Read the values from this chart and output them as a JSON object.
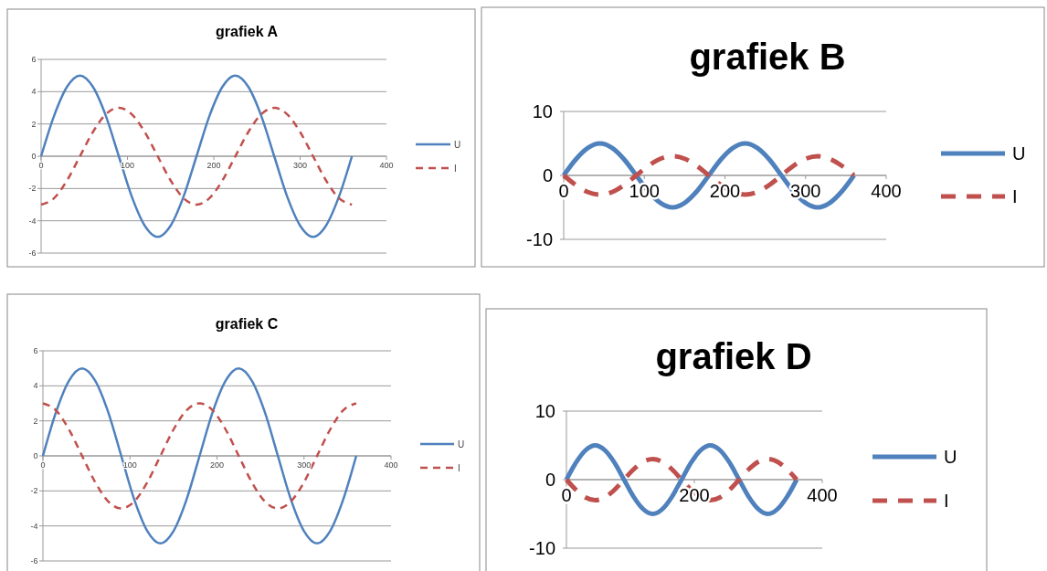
{
  "chart_data": [
    {
      "type": "line",
      "title": "grafiek A",
      "x": [
        0,
        15,
        30,
        45,
        60,
        75,
        90,
        105,
        120,
        135,
        150,
        165,
        180,
        195,
        210,
        225,
        240,
        255,
        270,
        285,
        300,
        315,
        330,
        345,
        360
      ],
      "xlim": [
        0,
        400
      ],
      "xticks": [
        0,
        100,
        200,
        300,
        400
      ],
      "ylim": [
        -6,
        6
      ],
      "yticks": [
        -6,
        -4,
        -2,
        0,
        2,
        4,
        6
      ],
      "grid": "y",
      "legend": "right",
      "series": [
        {
          "name": "U",
          "color": "#4f81bd",
          "line_style": "solid",
          "values": [
            0,
            2.5,
            4.3,
            5,
            4.3,
            2.5,
            0,
            -2.5,
            -4.3,
            -5,
            -4.3,
            -2.5,
            0,
            2.5,
            4.3,
            5,
            4.3,
            2.5,
            0,
            -2.5,
            -4.3,
            -5,
            -4.3,
            -2.5,
            0
          ]
        },
        {
          "name": "I",
          "color": "#c0504d",
          "line_style": "dashed",
          "values": [
            -3,
            -2.6,
            -1.5,
            0,
            1.5,
            2.6,
            3,
            2.6,
            1.5,
            0,
            -1.5,
            -2.6,
            -3,
            -2.6,
            -1.5,
            0,
            1.5,
            2.6,
            3,
            2.6,
            1.5,
            0,
            -1.5,
            -2.6,
            -3
          ]
        }
      ]
    },
    {
      "type": "line",
      "title": "grafiek B",
      "x": [
        0,
        15,
        30,
        45,
        60,
        75,
        90,
        105,
        120,
        135,
        150,
        165,
        180,
        195,
        210,
        225,
        240,
        255,
        270,
        285,
        300,
        315,
        330,
        345,
        360
      ],
      "xlim": [
        0,
        400
      ],
      "xticks": [
        0,
        100,
        200,
        300,
        400
      ],
      "ylim": [
        -10,
        10
      ],
      "yticks": [
        -10,
        0,
        10
      ],
      "grid": "y",
      "legend": "right",
      "series": [
        {
          "name": "U",
          "color": "#4f81bd",
          "line_style": "solid",
          "values": [
            0,
            2.5,
            4.3,
            5,
            4.3,
            2.5,
            0,
            -2.5,
            -4.3,
            -5,
            -4.3,
            -2.5,
            0,
            2.5,
            4.3,
            5,
            4.3,
            2.5,
            0,
            -2.5,
            -4.3,
            -5,
            -4.3,
            -2.5,
            0
          ]
        },
        {
          "name": "I",
          "color": "#c0504d",
          "line_style": "dashed",
          "values": [
            0,
            -1.5,
            -2.6,
            -3,
            -2.6,
            -1.5,
            0,
            1.5,
            2.6,
            3,
            2.6,
            1.5,
            0,
            -1.5,
            -2.6,
            -3,
            -2.6,
            -1.5,
            0,
            1.5,
            2.6,
            3,
            2.6,
            1.5,
            0
          ]
        }
      ]
    },
    {
      "type": "line",
      "title": "grafiek C",
      "x": [
        0,
        15,
        30,
        45,
        60,
        75,
        90,
        105,
        120,
        135,
        150,
        165,
        180,
        195,
        210,
        225,
        240,
        255,
        270,
        285,
        300,
        315,
        330,
        345,
        360
      ],
      "xlim": [
        0,
        400
      ],
      "xticks": [
        0,
        100,
        200,
        300,
        400
      ],
      "ylim": [
        -6,
        6
      ],
      "yticks": [
        -6,
        -4,
        -2,
        0,
        2,
        4,
        6
      ],
      "grid": "y",
      "legend": "right",
      "series": [
        {
          "name": "U",
          "color": "#4f81bd",
          "line_style": "solid",
          "values": [
            0,
            2.5,
            4.3,
            5,
            4.3,
            2.5,
            0,
            -2.5,
            -4.3,
            -5,
            -4.3,
            -2.5,
            0,
            2.5,
            4.3,
            5,
            4.3,
            2.5,
            0,
            -2.5,
            -4.3,
            -5,
            -4.3,
            -2.5,
            0
          ]
        },
        {
          "name": "I",
          "color": "#c0504d",
          "line_style": "dashed",
          "values": [
            3,
            2.6,
            1.5,
            0,
            -1.5,
            -2.6,
            -3,
            -2.6,
            -1.5,
            0,
            1.5,
            2.6,
            3,
            2.6,
            1.5,
            0,
            -1.5,
            -2.6,
            -3,
            -2.6,
            -1.5,
            0,
            1.5,
            2.6,
            3
          ]
        }
      ]
    },
    {
      "type": "line",
      "title": "grafiek D",
      "x": [
        0,
        15,
        30,
        45,
        60,
        75,
        90,
        105,
        120,
        135,
        150,
        165,
        180,
        195,
        210,
        225,
        240,
        255,
        270,
        285,
        300,
        315,
        330,
        345,
        360
      ],
      "xlim": [
        0,
        400
      ],
      "xticks": [
        0,
        200,
        400
      ],
      "ylim": [
        -10,
        10
      ],
      "yticks": [
        -10,
        0,
        10
      ],
      "grid": "y",
      "legend": "right",
      "series": [
        {
          "name": "U",
          "color": "#4f81bd",
          "line_style": "solid",
          "values": [
            0,
            2.5,
            4.3,
            5,
            4.3,
            2.5,
            0,
            -2.5,
            -4.3,
            -5,
            -4.3,
            -2.5,
            0,
            2.5,
            4.3,
            5,
            4.3,
            2.5,
            0,
            -2.5,
            -4.3,
            -5,
            -4.3,
            -2.5,
            0
          ]
        },
        {
          "name": "I",
          "color": "#c0504d",
          "line_style": "dashed",
          "values": [
            0,
            -1.5,
            -2.6,
            -3,
            -2.6,
            -1.5,
            0,
            1.5,
            2.6,
            3,
            2.6,
            1.5,
            0,
            -1.5,
            -2.6,
            -3,
            -2.6,
            -1.5,
            0,
            1.5,
            2.6,
            3,
            2.6,
            1.5,
            0
          ]
        }
      ]
    }
  ]
}
